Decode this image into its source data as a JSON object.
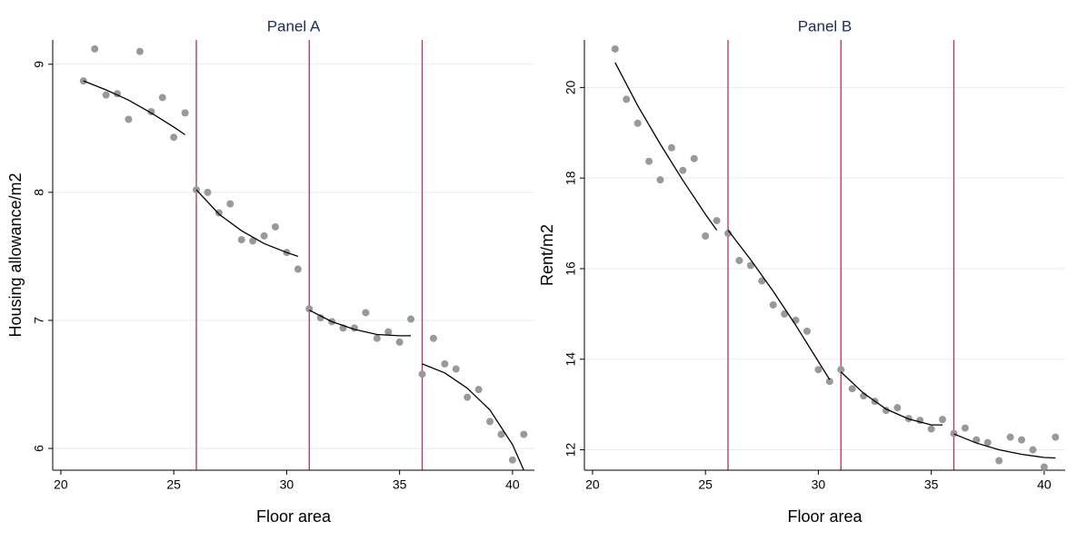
{
  "chart_data": [
    {
      "type": "scatter",
      "title": "Panel A",
      "x_label": "Floor area",
      "y_label": "Housing allowance/m2",
      "x": [
        21,
        21.5,
        22,
        22.5,
        23,
        23.5,
        24,
        24.5,
        25,
        25.5,
        26,
        26.5,
        27,
        27.5,
        28,
        28.5,
        29,
        29.5,
        30,
        30.5,
        31,
        31.5,
        32,
        32.5,
        33,
        33.5,
        34,
        34.5,
        35,
        35.5,
        36,
        36.5,
        37,
        37.5,
        38,
        38.5,
        39,
        39.5,
        40,
        40.5
      ],
      "values": [
        8.87,
        9.12,
        8.76,
        8.77,
        8.57,
        9.1,
        8.63,
        8.74,
        8.43,
        8.62,
        8.02,
        8.0,
        7.84,
        7.91,
        7.63,
        7.62,
        7.66,
        7.73,
        7.53,
        7.4,
        7.09,
        7.02,
        6.99,
        6.94,
        6.94,
        7.06,
        6.86,
        6.91,
        6.83,
        7.01,
        6.58,
        6.86,
        6.66,
        6.62,
        6.4,
        6.46,
        6.21,
        6.11,
        5.91,
        6.11
      ],
      "color": "#999999",
      "fit_lines": [
        {
          "x": [
            21,
            22,
            23,
            24,
            25,
            25.5
          ],
          "values": [
            8.87,
            8.8,
            8.72,
            8.62,
            8.51,
            8.45
          ]
        },
        {
          "x": [
            26,
            27,
            28,
            29,
            30,
            30.5
          ],
          "values": [
            8.02,
            7.83,
            7.7,
            7.6,
            7.53,
            7.5
          ]
        },
        {
          "x": [
            31,
            32,
            33,
            34,
            35,
            35.5
          ],
          "values": [
            7.08,
            6.99,
            6.93,
            6.89,
            6.88,
            6.88
          ]
        },
        {
          "x": [
            36,
            37,
            38,
            39,
            40,
            40.5
          ],
          "values": [
            6.66,
            6.59,
            6.47,
            6.3,
            6.03,
            5.83
          ]
        }
      ],
      "fit_color": "#000000",
      "vlines": [
        26,
        31,
        36
      ],
      "vline_color": "#b0345e",
      "xlim": [
        19.64,
        40.97
      ],
      "ylim": [
        5.83,
        9.19
      ],
      "xticks": [
        20,
        25,
        30,
        35,
        40
      ],
      "yticks": [
        6,
        7,
        8,
        9
      ],
      "grid": true
    },
    {
      "type": "scatter",
      "title": "Panel B",
      "x_label": "Floor area",
      "y_label": "Rent/m2",
      "x": [
        21,
        21.5,
        22,
        22.5,
        23,
        23.5,
        24,
        24.5,
        25,
        25.5,
        26,
        26.5,
        27,
        27.5,
        28,
        28.5,
        29,
        29.5,
        30,
        30.5,
        31,
        31.5,
        32,
        32.5,
        33,
        33.5,
        34,
        34.5,
        35,
        35.5,
        36,
        36.5,
        37,
        37.5,
        38,
        38.5,
        39,
        39.5,
        40,
        40.5
      ],
      "values": [
        20.85,
        19.74,
        19.21,
        18.37,
        17.96,
        18.67,
        18.17,
        18.43,
        16.72,
        17.06,
        16.78,
        16.18,
        16.07,
        15.73,
        15.2,
        15.0,
        14.86,
        14.62,
        13.77,
        13.51,
        13.77,
        13.35,
        13.19,
        13.07,
        12.87,
        12.93,
        12.69,
        12.65,
        12.46,
        12.67,
        12.36,
        12.48,
        12.22,
        12.16,
        11.76,
        12.28,
        12.22,
        12.0,
        11.62,
        12.28
      ],
      "color": "#999999",
      "fit_lines": [
        {
          "x": [
            21,
            22,
            23,
            24,
            25,
            25.5
          ],
          "values": [
            20.55,
            19.6,
            18.75,
            17.95,
            17.2,
            16.85
          ]
        },
        {
          "x": [
            26,
            27,
            28,
            29,
            30,
            30.5
          ],
          "values": [
            16.85,
            16.2,
            15.5,
            14.75,
            13.95,
            13.55
          ]
        },
        {
          "x": [
            31,
            32,
            33,
            34,
            35,
            35.5
          ],
          "values": [
            13.72,
            13.25,
            12.9,
            12.68,
            12.55,
            12.55
          ]
        },
        {
          "x": [
            36,
            37,
            38,
            39,
            40,
            40.5
          ],
          "values": [
            12.35,
            12.15,
            12.0,
            11.9,
            11.83,
            11.82
          ]
        }
      ],
      "fit_color": "#000000",
      "vlines": [
        26,
        31,
        36
      ],
      "vline_color": "#b0345e",
      "xlim": [
        19.64,
        40.93
      ],
      "ylim": [
        11.55,
        21.05
      ],
      "xticks": [
        20,
        25,
        30,
        35,
        40
      ],
      "yticks": [
        12,
        14,
        16,
        18,
        20
      ],
      "grid": true
    }
  ]
}
